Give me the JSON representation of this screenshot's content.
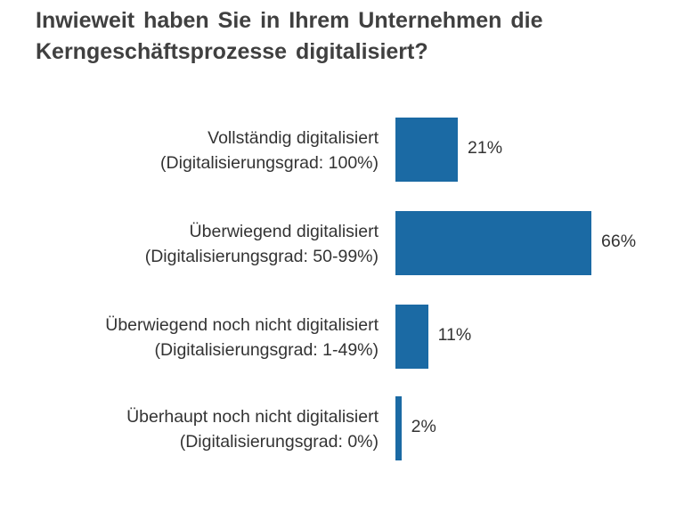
{
  "chart_data": {
    "type": "bar",
    "orientation": "horizontal",
    "title_lines": [
      "Inwieweit haben Sie in Ihrem Unternehmen die",
      "Kerngeschäftsprozesse digitalisiert?"
    ],
    "categories": [
      [
        "Vollständig digitalisiert",
        "(Digitalisierungsgrad: 100%)"
      ],
      [
        "Überwiegend digitalisiert",
        "(Digitalisierungsgrad: 50-99%)"
      ],
      [
        "Überwiegend noch  nicht digitalisiert",
        "(Digitalisierungsgrad: 1-49%)"
      ],
      [
        "Überhaupt noch nicht digitalisiert",
        "(Digitalisierungsgrad: 0%)"
      ]
    ],
    "values": [
      21,
      66,
      11,
      2
    ],
    "value_labels": [
      "21%",
      "66%",
      "11%",
      "2%"
    ],
    "xlim": [
      0,
      100
    ],
    "grid": false,
    "legend": "none",
    "bar_color": "#1b6aa4"
  }
}
